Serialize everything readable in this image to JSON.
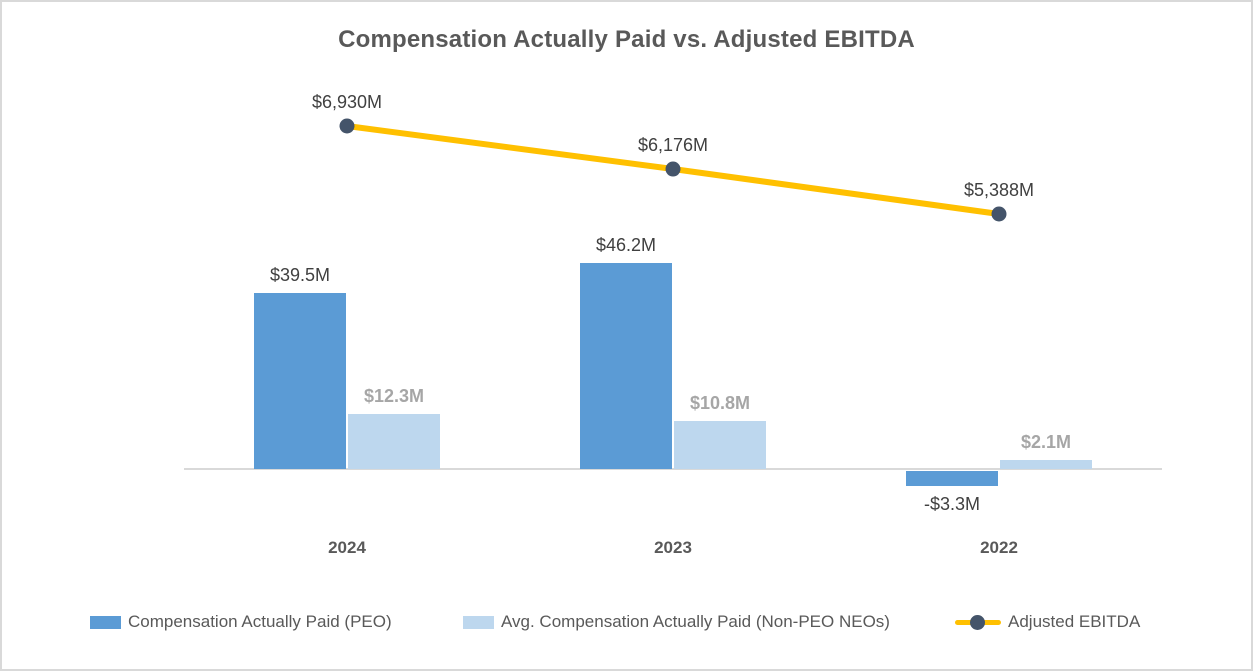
{
  "chart": {
    "title": "Compensation Actually Paid vs. Adjusted EBITDA",
    "colors": {
      "peo_bar": "#5B9BD5",
      "non_peo_bar": "#BDD7EE",
      "ebitda_line": "#FFC000",
      "ebitda_marker": "#44546A",
      "dark_label": "#404040",
      "gray_label": "#A6A6A6",
      "axis_line": "#D9D9D9",
      "title_text": "#595959"
    },
    "legend": [
      {
        "label": "Compensation Actually Paid (PEO)",
        "swatch": "bar",
        "color": "#5B9BD5"
      },
      {
        "label": "Avg. Compensation Actually Paid (Non-PEO NEOs)",
        "swatch": "bar",
        "color": "#BDD7EE"
      },
      {
        "label": "Adjusted EBITDA",
        "swatch": "line-marker",
        "color": "#FFC000"
      }
    ]
  },
  "chart_data": {
    "type": "bar+line combo",
    "categories": [
      "2024",
      "2023",
      "2022"
    ],
    "series": [
      {
        "name": "Compensation Actually Paid (PEO)",
        "type": "bar",
        "values": [
          39.5,
          46.2,
          -3.3
        ],
        "labels": [
          "$39.5M",
          "$46.2M",
          "-$3.3M"
        ],
        "unit": "$M",
        "color": "#5B9BD5"
      },
      {
        "name": "Avg. Compensation Actually Paid (Non-PEO NEOs)",
        "type": "bar",
        "values": [
          12.3,
          10.8,
          2.1
        ],
        "labels": [
          "$12.3M",
          "$10.8M",
          "$2.1M"
        ],
        "unit": "$M",
        "color": "#BDD7EE"
      },
      {
        "name": "Adjusted EBITDA",
        "type": "line",
        "values": [
          6930,
          6176,
          5388
        ],
        "labels": [
          "$6,930M",
          "$6,176M",
          "$5,388M"
        ],
        "unit": "$M",
        "color": "#FFC000",
        "marker_color": "#44546A"
      }
    ],
    "title": "Compensation Actually Paid vs. Adjusted EBITDA",
    "xlabel": "",
    "ylabel": "",
    "grid": false,
    "legend_position": "bottom",
    "bar_axis_baseline": 0
  }
}
